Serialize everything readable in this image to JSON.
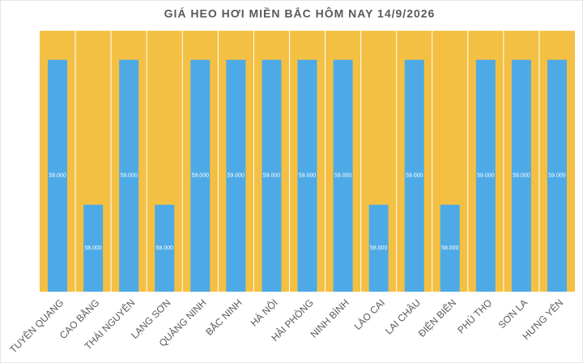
{
  "chart_data": {
    "type": "bar",
    "title": "GIÁ HEO HƠI MIỀN BẮC HÔM NAY 14/9/2026",
    "categories": [
      "TUYÊN QUANG",
      "CAO BẰNG",
      "THÁI NGUYÊN",
      "LẠNG SƠN",
      "QUẢNG NINH",
      "BẮC NINH",
      "HÀ NỘI",
      "HẢI PHÒNG",
      "NINH BÌNH",
      "LÀO CAI",
      "LAI CHÂU",
      "ĐIỆN BIÊN",
      "PHÚ THỌ",
      "SƠN LA",
      "HƯNG YÊN"
    ],
    "values": [
      59000,
      58000,
      59000,
      58000,
      59000,
      59000,
      59000,
      59000,
      59000,
      58000,
      59000,
      58000,
      59000,
      59000,
      59000
    ],
    "value_labels": [
      "59.000",
      "58.000",
      "59.000",
      "58.000",
      "59.000",
      "59.000",
      "59.000",
      "59.000",
      "59.000",
      "58.000",
      "59.000",
      "58.000",
      "59.000",
      "59.000",
      "59.000"
    ],
    "color": "#4eaae6",
    "background": "#f4c043",
    "ylim": [
      57400,
      59200
    ]
  }
}
